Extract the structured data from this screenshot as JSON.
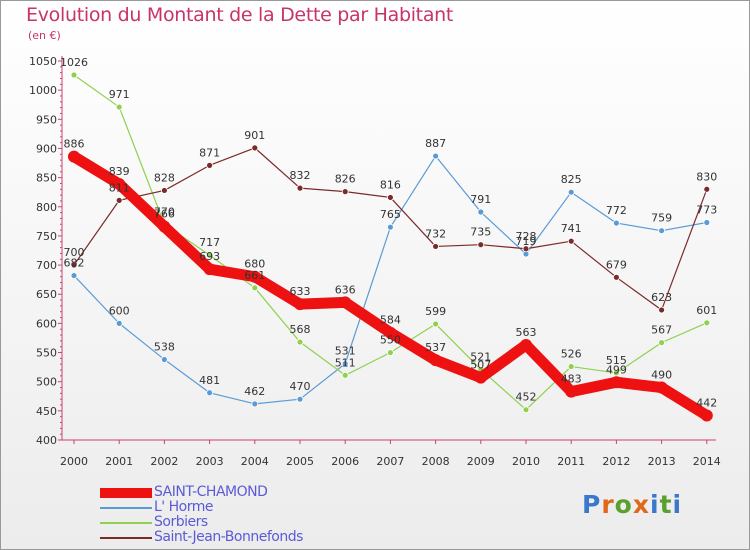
{
  "title": "Evolution du Montant de la Dette par Habitant",
  "subtitle": "(en €)",
  "logo": {
    "text": "Proxiti",
    "letter_colors": [
      "#3a78c9",
      "#e0681a",
      "#5aa02c",
      "#e0681a",
      "#3a78c9",
      "#5aa02c",
      "#3a78c9"
    ]
  },
  "chart_data": {
    "type": "line",
    "title": "Evolution du Montant de la Dette par Habitant",
    "ylabel": "(en €)",
    "x": [
      "2000",
      "2001",
      "2002",
      "2003",
      "2004",
      "2005",
      "2006",
      "2007",
      "2008",
      "2009",
      "2010",
      "2011",
      "2012",
      "2013",
      "2014"
    ],
    "ylim": [
      400,
      1050
    ],
    "yticks": [
      400,
      450,
      500,
      550,
      600,
      650,
      700,
      750,
      800,
      850,
      900,
      950,
      1000,
      1050
    ],
    "grid": false,
    "legend": "bottom-left",
    "series": [
      {
        "name": "SAINT-CHAMOND",
        "color": "#ee1111",
        "values": [
          886,
          839,
          766,
          693,
          680,
          633,
          636,
          584,
          537,
          507,
          563,
          483,
          499,
          490,
          442
        ]
      },
      {
        "name": "L' Horme",
        "color": "#5b9bd5",
        "values": [
          682,
          600,
          538,
          481,
          462,
          470,
          531,
          765,
          887,
          791,
          719,
          825,
          772,
          759,
          773
        ]
      },
      {
        "name": "Sorbiers",
        "color": "#8fd14f",
        "values": [
          1026,
          971,
          770,
          717,
          661,
          568,
          511,
          550,
          599,
          521,
          452,
          526,
          515,
          567,
          601
        ]
      },
      {
        "name": "Saint-Jean-Bonnefonds",
        "color": "#7b2a2a",
        "values": [
          700,
          811,
          828,
          871,
          901,
          832,
          826,
          816,
          732,
          735,
          728,
          741,
          679,
          623,
          830
        ]
      }
    ]
  }
}
